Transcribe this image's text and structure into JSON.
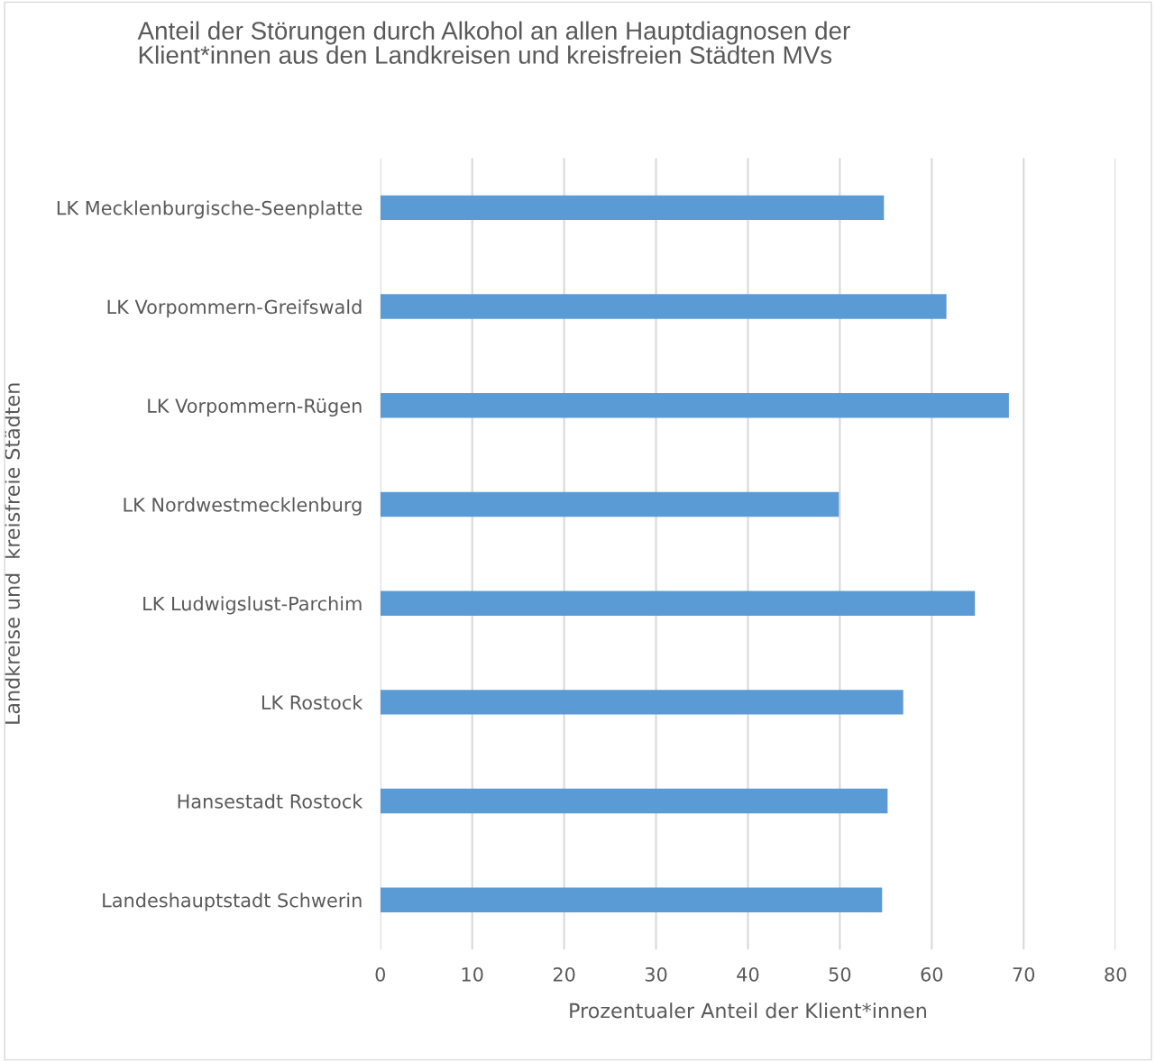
{
  "chart_data": {
    "type": "bar",
    "orientation": "horizontal",
    "title": "Anteil der Störungen durch Alkohol an allen Hauptdiagnosen der\nKlient*innen aus den Landkreisen und kreisfreien Städten MVs",
    "xlabel": "Prozentualer Anteil der Klient*innen",
    "ylabel": "Landkreise und  kreisfreie Städten",
    "categories": [
      "LK Mecklenburgische-Seenplatte",
      "LK Vorpommern-Greifswald",
      "LK Vorpommern-Rügen",
      "LK Nordwestmecklenburg",
      "LK Ludwigslust-Parchim",
      "LK Rostock",
      "Hansestadt Rostock",
      "Landeshauptstadt Schwerin"
    ],
    "values": [
      54.8,
      61.6,
      68.4,
      49.9,
      64.7,
      56.9,
      55.2,
      54.6
    ],
    "color": "#5b9bd5",
    "xlim": [
      0,
      80
    ],
    "xticks": [
      0,
      10,
      20,
      30,
      40,
      50,
      60,
      70,
      80
    ],
    "grid": "x",
    "legend": false
  }
}
